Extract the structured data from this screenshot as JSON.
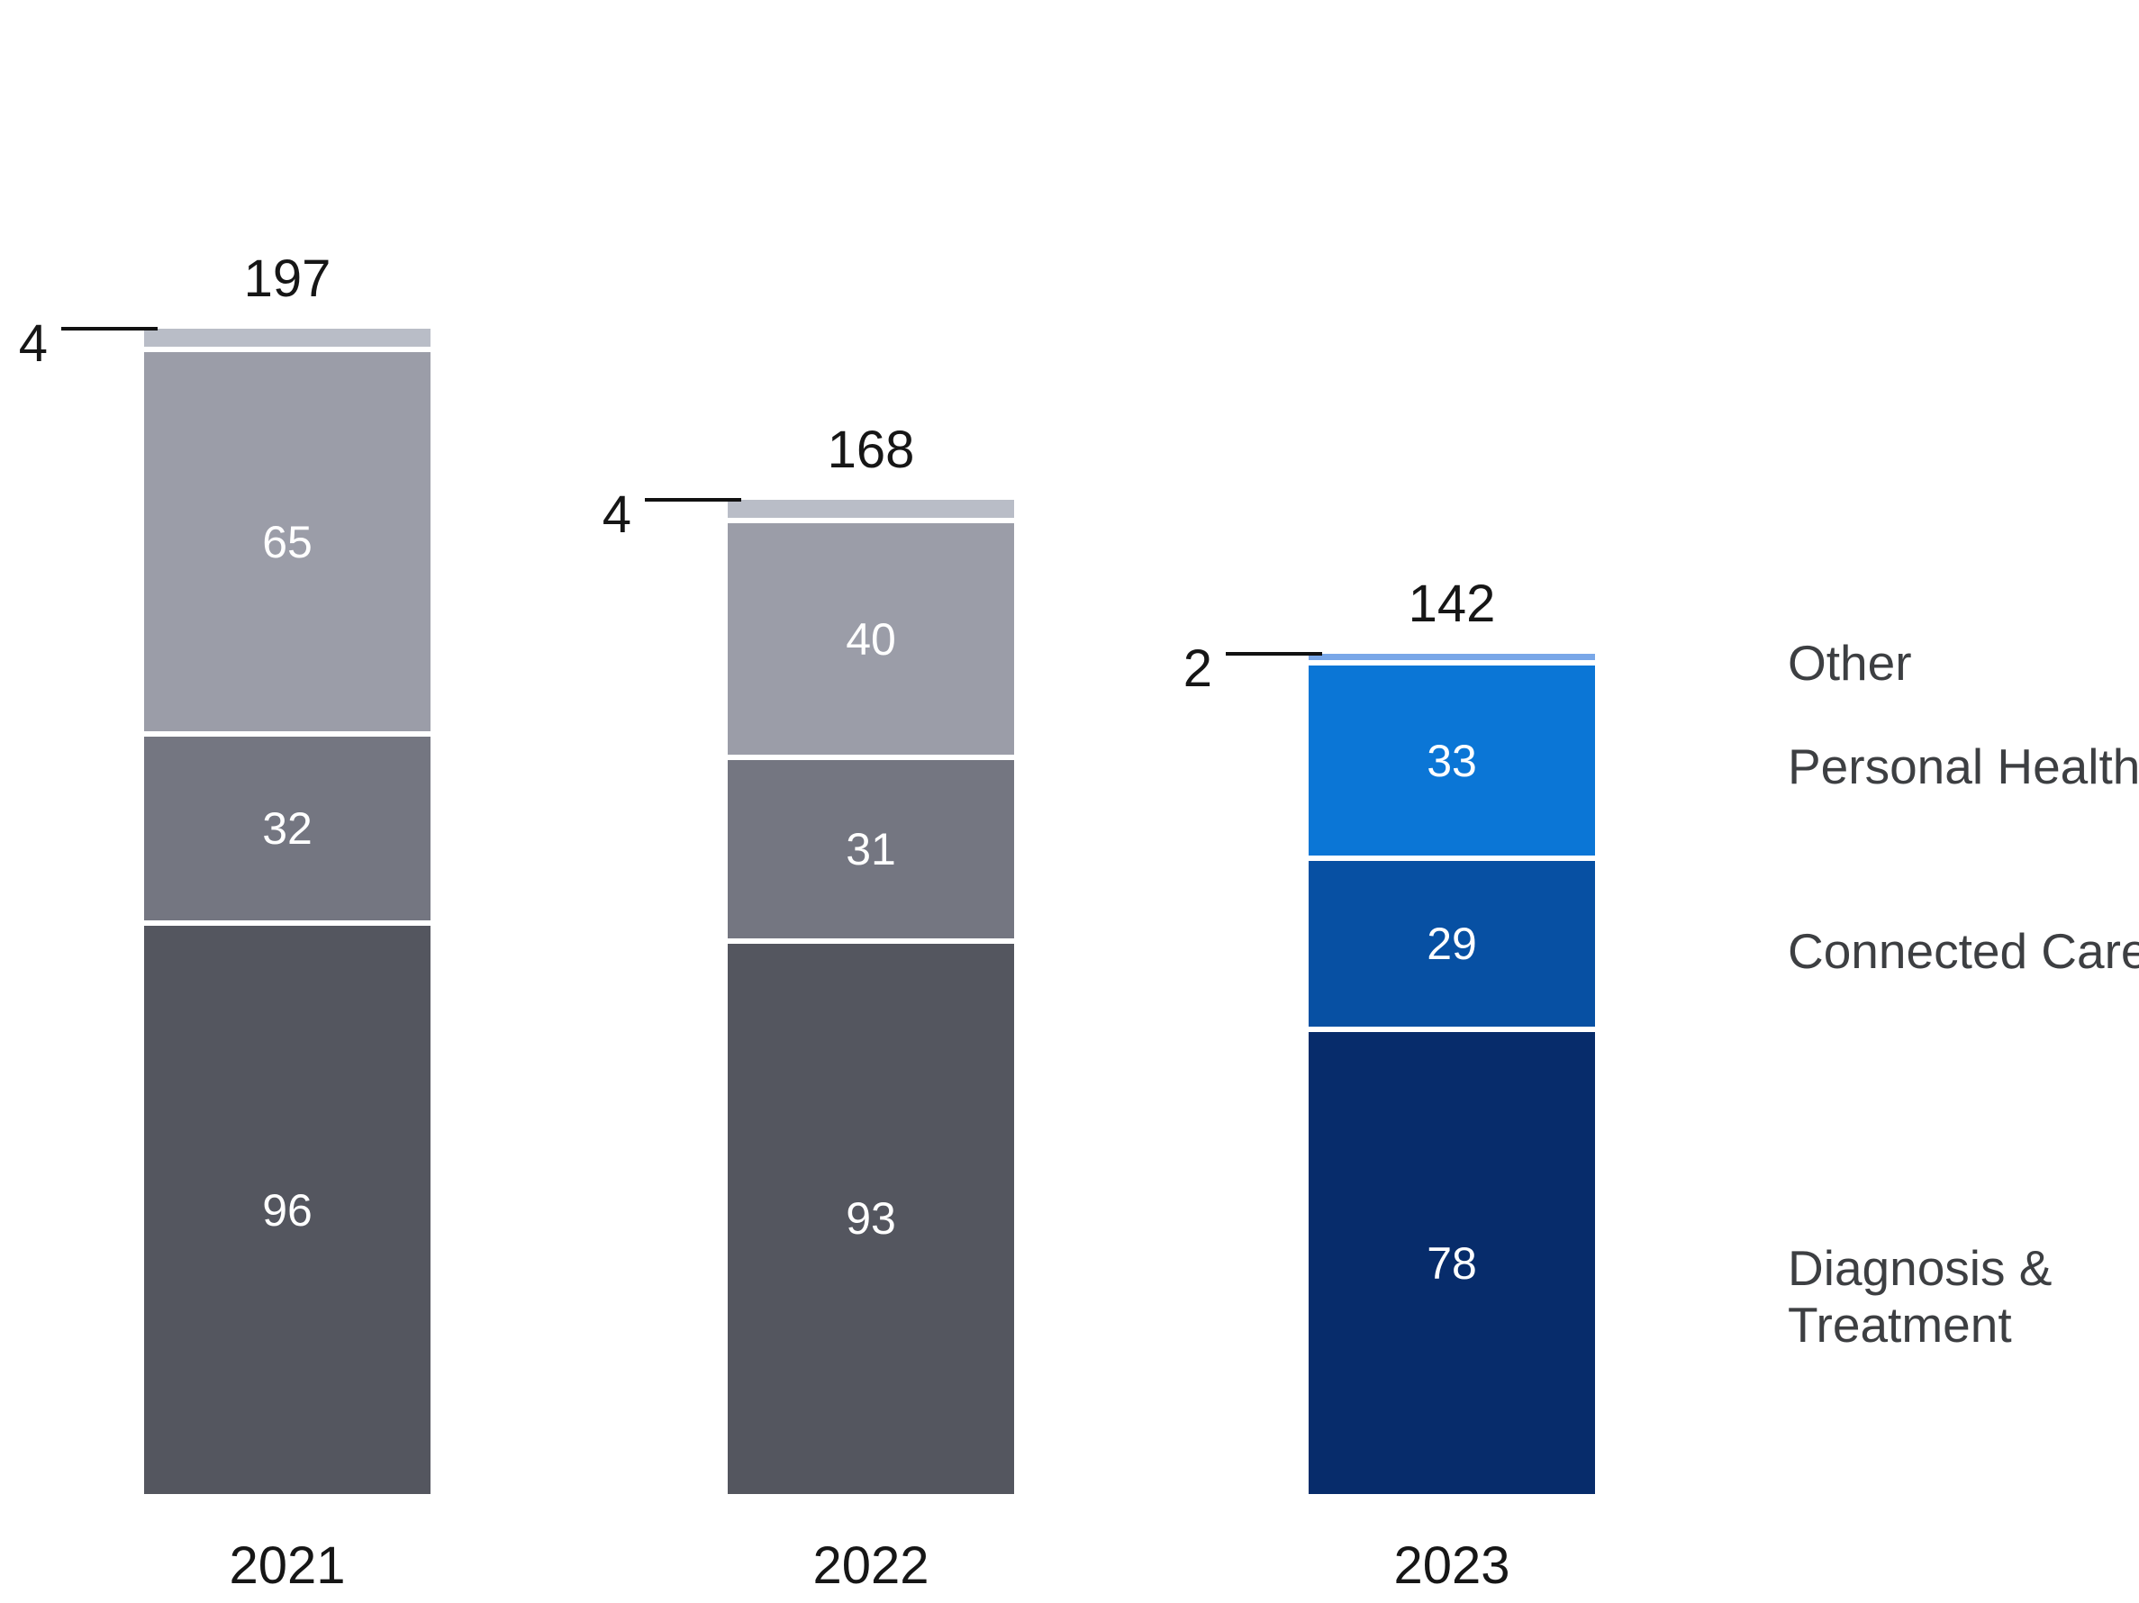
{
  "page": {
    "background": "#ffffff"
  },
  "chart_data": {
    "type": "bar",
    "stacked": true,
    "title": "",
    "xlabel": "",
    "ylabel": "",
    "grid": false,
    "y_axis_visible": false,
    "legend_position": "right",
    "value_labels": "inside-segments",
    "categories": [
      "2021",
      "2022",
      "2023"
    ],
    "series": [
      {
        "name": "Other",
        "values": [
          4,
          4,
          2
        ]
      },
      {
        "name": "Personal Health",
        "values": [
          65,
          40,
          33
        ]
      },
      {
        "name": "Connected Care",
        "values": [
          32,
          31,
          29
        ]
      },
      {
        "name": "Diagnosis & Treatment",
        "values": [
          96,
          93,
          78
        ]
      }
    ],
    "totals": [
      197,
      168,
      142
    ],
    "callout_values": [
      4,
      4,
      2
    ],
    "legend": [
      {
        "label": "Other"
      },
      {
        "label": "Personal Health"
      },
      {
        "label": "Connected Care"
      },
      {
        "label": "Diagnosis &\nTreatment"
      }
    ],
    "palettes": {
      "gray": {
        "Other": "#b9bdc7",
        "Personal Health": "#9b9da8",
        "Connected Care": "#747681",
        "Diagnosis & Treatment": "#54565f"
      },
      "blue": {
        "Other": "#79a7e8",
        "Personal Health": "#0b76d6",
        "Connected Care": "#0750a3",
        "Diagnosis & Treatment": "#072c6b"
      }
    },
    "bar_palettes": [
      "gray",
      "gray",
      "blue"
    ],
    "text_colors": {
      "labels": "#161616",
      "legend": "#3d3f42",
      "segment_value": "#ffffff"
    }
  }
}
